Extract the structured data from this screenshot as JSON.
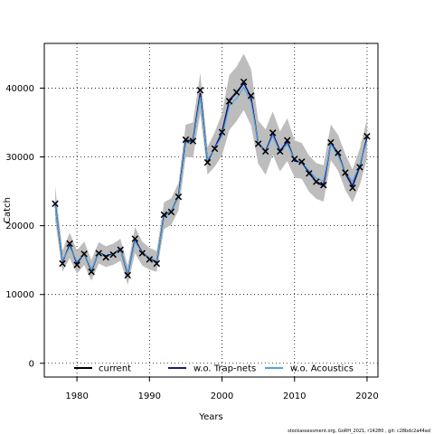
{
  "chart_data": {
    "type": "line",
    "xlabel": "Years",
    "ylabel": "Catch",
    "xlim": [
      1975.5,
      2021.5
    ],
    "ylim": [
      -2000,
      46500
    ],
    "x_ticks": [
      1980,
      1990,
      2000,
      2010,
      2020
    ],
    "y_ticks": [
      0,
      10000,
      20000,
      30000,
      40000
    ],
    "grid": "dotted",
    "legend_position": "bottom",
    "x": [
      1977,
      1978,
      1979,
      1980,
      1981,
      1982,
      1983,
      1984,
      1985,
      1986,
      1987,
      1988,
      1989,
      1990,
      1991,
      1992,
      1993,
      1994,
      1995,
      1996,
      1997,
      1998,
      1999,
      2000,
      2001,
      2002,
      2003,
      2004,
      2005,
      2006,
      2007,
      2008,
      2009,
      2010,
      2011,
      2012,
      2013,
      2014,
      2015,
      2016,
      2017,
      2018,
      2019,
      2020
    ],
    "observed": [
      23200,
      14500,
      17400,
      14300,
      15900,
      13300,
      16000,
      15400,
      15800,
      16500,
      12800,
      18100,
      16000,
      15100,
      14500,
      21600,
      22000,
      24200,
      32500,
      32300,
      39700,
      29200,
      31200,
      33600,
      38100,
      39400,
      40900,
      38900,
      31900,
      30800,
      33500,
      30800,
      32400,
      29700,
      29300,
      27600,
      26400,
      25900,
      32100,
      30600,
      27700,
      25500,
      28500,
      33000
    ],
    "series": [
      {
        "name": "current",
        "color": "#000000",
        "values": [
          23200,
          14700,
          17200,
          14500,
          16000,
          13400,
          16100,
          15600,
          15900,
          16600,
          12900,
          18000,
          16100,
          15200,
          14700,
          21500,
          22100,
          24300,
          32400,
          32400,
          39300,
          29300,
          31300,
          33600,
          38200,
          39300,
          40700,
          38700,
          32000,
          30700,
          33400,
          30800,
          32300,
          29500,
          29200,
          27700,
          26300,
          25800,
          32000,
          30500,
          27600,
          25700,
          28600,
          32900
        ]
      },
      {
        "name": "w.o. Trap-nets",
        "color": "#1a1a7a",
        "values": [
          23100,
          14800,
          17100,
          14600,
          16000,
          13500,
          16100,
          15600,
          15900,
          16600,
          13000,
          17900,
          16100,
          15300,
          14800,
          21400,
          22100,
          24300,
          32300,
          32300,
          39100,
          29400,
          31300,
          33500,
          38300,
          39400,
          40800,
          38600,
          32100,
          30800,
          33400,
          30900,
          32200,
          29400,
          29200,
          27800,
          26400,
          25900,
          32000,
          30600,
          27700,
          25800,
          28700,
          32800
        ]
      },
      {
        "name": "w.o. Acoustics",
        "color": "#4da6e0",
        "values": [
          23000,
          14900,
          16900,
          14800,
          16000,
          13600,
          16000,
          15500,
          15800,
          16500,
          13100,
          17700,
          16000,
          15300,
          14900,
          21200,
          22200,
          24100,
          32000,
          32100,
          38700,
          29600,
          31200,
          33000,
          37400,
          38500,
          40100,
          38000,
          32200,
          30600,
          33100,
          30600,
          31900,
          29600,
          29300,
          28000,
          26900,
          26500,
          31800,
          30200,
          27800,
          26400,
          28900,
          32400
        ]
      }
    ],
    "band_upper": [
      25700,
      16400,
      19000,
      16400,
      17700,
      15000,
      17600,
      17000,
      17400,
      18100,
      14200,
      19800,
      17700,
      16800,
      16300,
      23400,
      24000,
      26200,
      34700,
      35000,
      42200,
      31400,
      33600,
      36300,
      41900,
      43100,
      45000,
      42800,
      35300,
      34000,
      36600,
      33700,
      35600,
      32400,
      32000,
      30200,
      29100,
      28800,
      34700,
      33200,
      30400,
      28200,
      31200,
      35500
    ],
    "band_lower": [
      20800,
      13300,
      15300,
      13000,
      14300,
      12000,
      14500,
      14000,
      14300,
      14900,
      11400,
      16000,
      14200,
      13600,
      13300,
      19500,
      20100,
      22200,
      30000,
      29900,
      36300,
      27400,
      28600,
      30200,
      33900,
      35200,
      36800,
      34600,
      29000,
      27400,
      30300,
      27900,
      29400,
      27000,
      26800,
      24900,
      23900,
      23500,
      29500,
      28000,
      25200,
      23400,
      25900,
      29800
    ],
    "band_color": "#bdbdbd"
  },
  "footer": {
    "text": "stockassessment.org, GoRH_2021, r14280 , git: c28bdc2a44ad"
  }
}
